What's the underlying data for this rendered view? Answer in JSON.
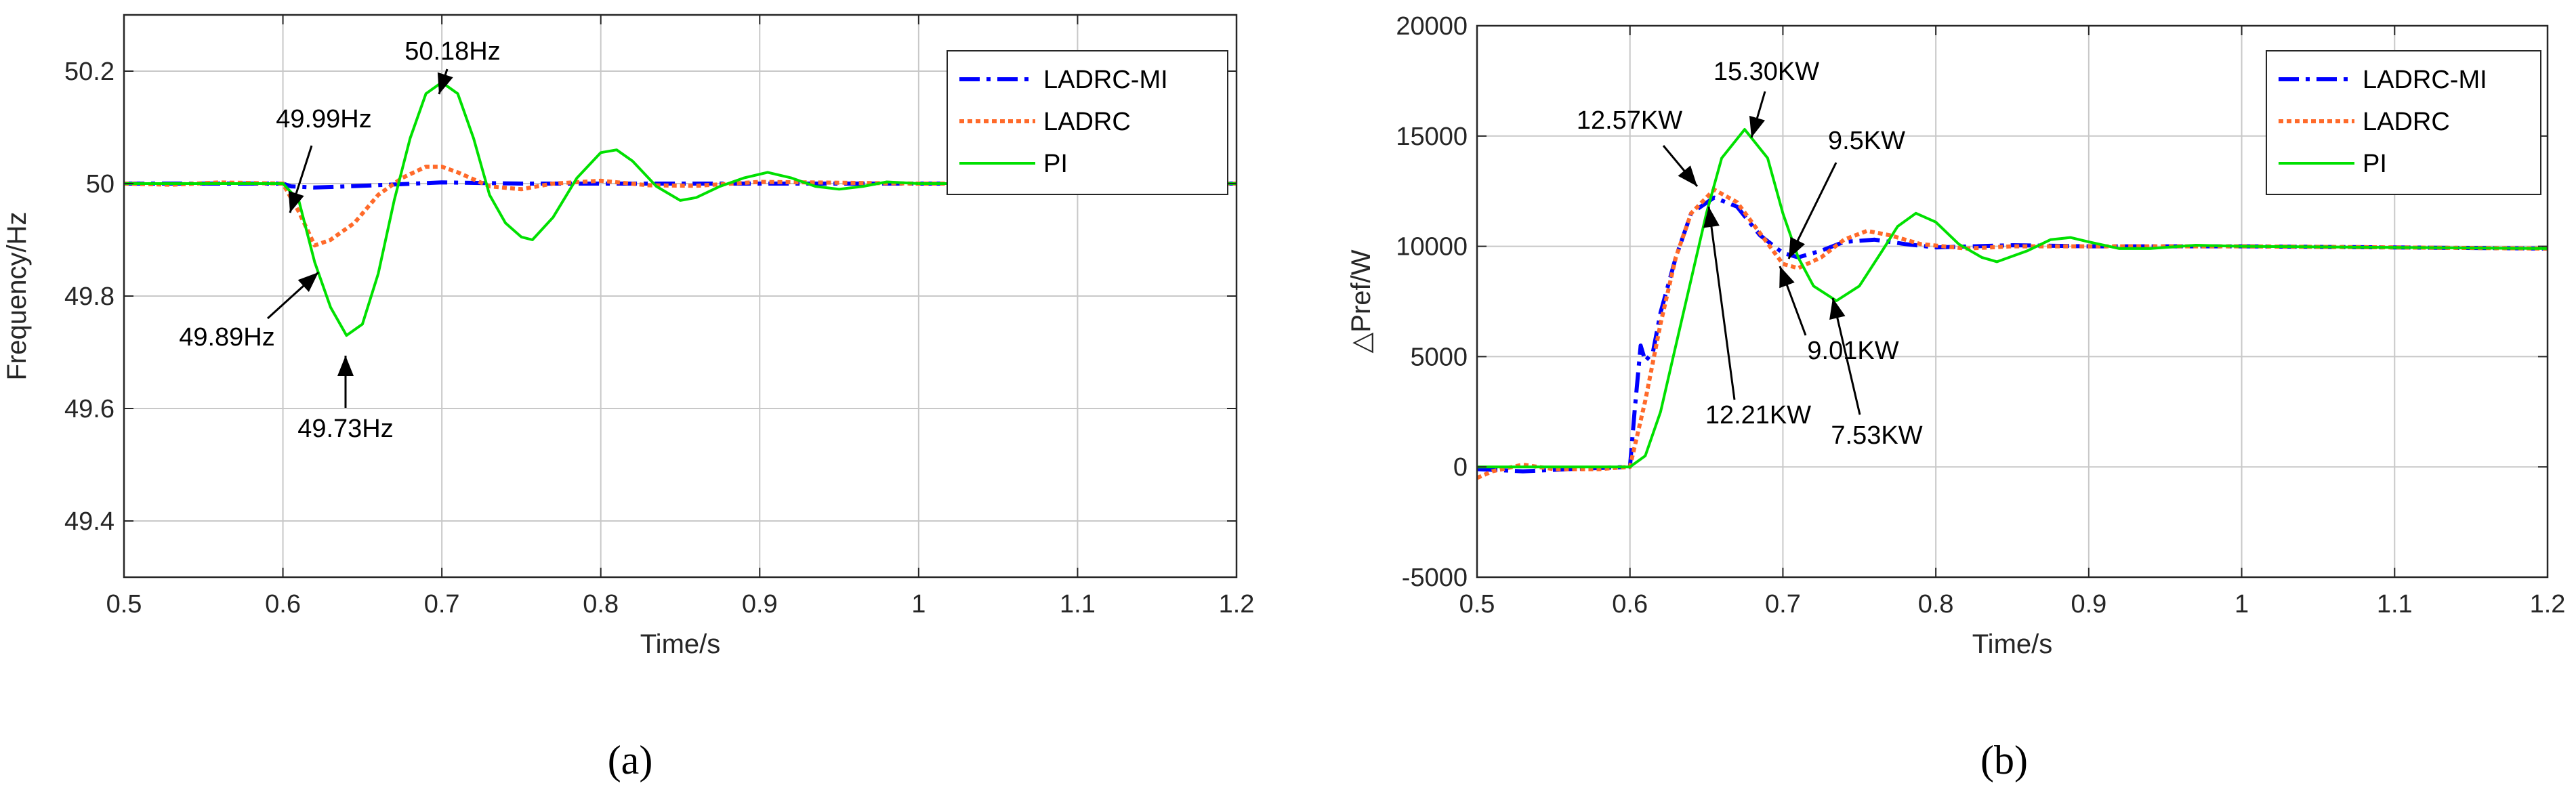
{
  "chart_data": [
    {
      "type": "line",
      "panel_label": "(a)",
      "xlabel": "Time/s",
      "ylabel": "Frequency/Hz",
      "xlim": [
        0.5,
        1.2
      ],
      "ylim": [
        49.3,
        50.3
      ],
      "xticks": [
        0.5,
        0.6,
        0.7,
        0.8,
        0.9,
        1,
        1.1,
        1.2
      ],
      "xtick_labels": [
        "0.5",
        "0.6",
        "0.7",
        "0.8",
        "0.9",
        "1",
        "1.1",
        "1.2"
      ],
      "yticks": [
        49.4,
        49.6,
        49.8,
        50,
        50.2
      ],
      "ytick_labels": [
        "49.4",
        "49.6",
        "49.8",
        "50",
        "50.2"
      ],
      "grid": true,
      "legend_position": "top-right",
      "series": [
        {
          "name": "LADRC-MI",
          "color": "#0000ff",
          "style": "dashdot",
          "x": [
            0.5,
            0.6,
            0.605,
            0.62,
            0.65,
            0.7,
            0.75,
            0.8,
            0.9,
            1.0,
            1.1,
            1.2
          ],
          "y": [
            50.0,
            50.0,
            49.995,
            49.993,
            49.996,
            50.002,
            50.0,
            50.0,
            50.0,
            50.0,
            50.0,
            50.0
          ]
        },
        {
          "name": "LADRC",
          "color": "#ff6a2a",
          "style": "dotted",
          "x": [
            0.5,
            0.53,
            0.56,
            0.6,
            0.61,
            0.62,
            0.63,
            0.645,
            0.66,
            0.675,
            0.69,
            0.7,
            0.71,
            0.73,
            0.75,
            0.77,
            0.8,
            0.83,
            0.86,
            0.9,
            1.0,
            1.1,
            1.2
          ],
          "y": [
            50.0,
            49.998,
            50.002,
            50.0,
            49.95,
            49.89,
            49.9,
            49.93,
            49.98,
            50.01,
            50.03,
            50.03,
            50.02,
            49.995,
            49.99,
            50.0,
            50.005,
            49.997,
            49.996,
            50.003,
            50.0,
            50.0,
            50.0
          ]
        },
        {
          "name": "PI",
          "color": "#00e000",
          "style": "solid",
          "x": [
            0.5,
            0.6,
            0.61,
            0.62,
            0.63,
            0.64,
            0.65,
            0.66,
            0.67,
            0.68,
            0.69,
            0.7,
            0.71,
            0.72,
            0.73,
            0.74,
            0.75,
            0.757,
            0.77,
            0.785,
            0.8,
            0.81,
            0.82,
            0.835,
            0.85,
            0.86,
            0.875,
            0.89,
            0.905,
            0.92,
            0.935,
            0.95,
            0.965,
            0.98,
            1.0,
            1.2
          ],
          "y": [
            50.0,
            50.0,
            49.97,
            49.86,
            49.78,
            49.73,
            49.75,
            49.84,
            49.97,
            50.08,
            50.16,
            50.18,
            50.16,
            50.08,
            49.98,
            49.93,
            49.905,
            49.9,
            49.94,
            50.01,
            50.055,
            50.06,
            50.04,
            49.995,
            49.97,
            49.975,
            49.995,
            50.01,
            50.02,
            50.01,
            49.995,
            49.99,
            49.995,
            50.003,
            50.0,
            50.0
          ]
        }
      ],
      "annotations": [
        {
          "text": "50.18Hz",
          "x": 0.7,
          "y": 50.18
        },
        {
          "text": "49.99Hz",
          "x": 0.6,
          "y": 49.99
        },
        {
          "text": "49.89Hz",
          "x": 0.62,
          "y": 49.89
        },
        {
          "text": "49.73Hz",
          "x": 0.64,
          "y": 49.73
        }
      ]
    },
    {
      "type": "line",
      "panel_label": "(b)",
      "xlabel": "Time/s",
      "ylabel": "△Pref/W",
      "xlim": [
        0.5,
        1.2
      ],
      "ylim": [
        -5000,
        20000
      ],
      "xticks": [
        0.5,
        0.6,
        0.7,
        0.8,
        0.9,
        1,
        1.1,
        1.2
      ],
      "xtick_labels": [
        "0.5",
        "0.6",
        "0.7",
        "0.8",
        "0.9",
        "1",
        "1.1",
        "1.2"
      ],
      "yticks": [
        -5000,
        0,
        5000,
        10000,
        15000,
        20000
      ],
      "ytick_labels": [
        "-5000",
        "0",
        "5000",
        "10000",
        "15000",
        "20000"
      ],
      "grid": true,
      "legend_position": "top-right",
      "series": [
        {
          "name": "LADRC-MI",
          "color": "#0000ff",
          "style": "dashdot",
          "x": [
            0.5,
            0.53,
            0.56,
            0.6,
            0.603,
            0.607,
            0.61,
            0.615,
            0.62,
            0.63,
            0.64,
            0.655,
            0.67,
            0.685,
            0.7,
            0.71,
            0.725,
            0.74,
            0.76,
            0.78,
            0.8,
            0.85,
            0.9,
            1.0,
            1.2
          ],
          "y": [
            -100,
            -200,
            -100,
            0,
            2500,
            5500,
            4800,
            5200,
            7000,
            9500,
            11500,
            12210,
            11800,
            10500,
            9700,
            9500,
            9800,
            10200,
            10300,
            10100,
            9950,
            10050,
            10000,
            10000,
            9900
          ]
        },
        {
          "name": "LADRC",
          "color": "#ff6a2a",
          "style": "dotted",
          "x": [
            0.5,
            0.51,
            0.53,
            0.55,
            0.58,
            0.6,
            0.61,
            0.62,
            0.63,
            0.64,
            0.655,
            0.67,
            0.685,
            0.7,
            0.71,
            0.725,
            0.74,
            0.755,
            0.77,
            0.79,
            0.82,
            0.85,
            0.9,
            1.0,
            1.2
          ],
          "y": [
            -500,
            -200,
            100,
            -100,
            -100,
            0,
            3000,
            6500,
            9500,
            11500,
            12570,
            12000,
            10600,
            9200,
            9010,
            9500,
            10300,
            10700,
            10500,
            10100,
            9900,
            10000,
            10000,
            10000,
            9900
          ]
        },
        {
          "name": "PI",
          "color": "#00e000",
          "style": "solid",
          "x": [
            0.5,
            0.55,
            0.6,
            0.61,
            0.62,
            0.63,
            0.64,
            0.65,
            0.66,
            0.675,
            0.69,
            0.7,
            0.71,
            0.72,
            0.735,
            0.75,
            0.765,
            0.775,
            0.787,
            0.8,
            0.815,
            0.83,
            0.84,
            0.86,
            0.875,
            0.888,
            0.9,
            0.92,
            0.94,
            0.97,
            1.0,
            1.2
          ],
          "y": [
            0,
            0,
            0,
            500,
            2500,
            5500,
            8500,
            11500,
            14000,
            15300,
            14000,
            11500,
            9500,
            8200,
            7530,
            8200,
            9800,
            10900,
            11500,
            11100,
            10100,
            9500,
            9300,
            9800,
            10300,
            10400,
            10200,
            9900,
            9900,
            10050,
            10000,
            9900
          ]
        }
      ],
      "annotations": [
        {
          "text": "15.30KW",
          "x": 0.675,
          "y": 15300
        },
        {
          "text": "12.57KW",
          "x": 0.655,
          "y": 12570
        },
        {
          "text": "9.5KW",
          "x": 0.71,
          "y": 9500
        },
        {
          "text": "12.21KW",
          "x": 0.655,
          "y": 12210
        },
        {
          "text": "9.01KW",
          "x": 0.71,
          "y": 9010
        },
        {
          "text": "7.53KW",
          "x": 0.735,
          "y": 7530
        }
      ]
    }
  ]
}
